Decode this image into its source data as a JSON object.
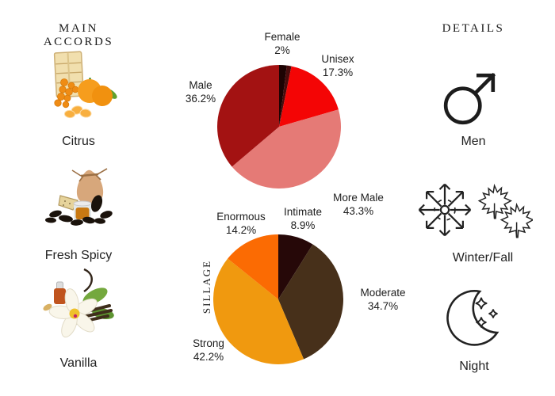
{
  "page": {
    "background": "#ffffff",
    "text_color": "#1e1e1e"
  },
  "left": {
    "heading": "MAIN ACCORDS",
    "accords": [
      {
        "name": "Citrus",
        "image": "citrus-crate-with-mandarins"
      },
      {
        "name": "Fresh Spicy",
        "image": "tonka-beans-amber-jar-pouch"
      },
      {
        "name": "Vanilla",
        "image": "vanilla-flower-pods-bottle"
      }
    ]
  },
  "right": {
    "heading": "DETAILS",
    "details": [
      {
        "label": "Men",
        "icon": "male-symbol"
      },
      {
        "label": "Winter/Fall",
        "icon": "snowflake-and-maple-leaves"
      },
      {
        "label": "Night",
        "icon": "crescent-moon-with-stars"
      }
    ]
  },
  "chart_data": [
    {
      "type": "pie",
      "name": "gender-votes",
      "start_angle_deg": 0,
      "direction": "clockwise",
      "legend_position": "around",
      "segments": [
        {
          "label": "Female",
          "pct": "2%",
          "value": 2,
          "color": "#1d0303"
        },
        {
          "label": "",
          "pct": "",
          "value": 1.2,
          "color": "#4a0c0c"
        },
        {
          "label": "Unisex",
          "pct": "17.3%",
          "value": 17.3,
          "color": "#f40505"
        },
        {
          "label": "More Male",
          "pct": "43.3%",
          "value": 43.3,
          "color": "#e57a76"
        },
        {
          "label": "Male",
          "pct": "36.2%",
          "value": 36.2,
          "color": "#a31212"
        }
      ]
    },
    {
      "type": "pie",
      "name": "sillage",
      "side_label": "SILLAGE",
      "start_angle_deg": 0,
      "direction": "clockwise",
      "legend_position": "around",
      "segments": [
        {
          "label": "Intimate",
          "pct": "8.9%",
          "value": 8.9,
          "color": "#260808"
        },
        {
          "label": "Moderate",
          "pct": "34.7%",
          "value": 34.7,
          "color": "#47301a"
        },
        {
          "label": "Strong",
          "pct": "42.2%",
          "value": 42.2,
          "color": "#f0990f"
        },
        {
          "label": "Enormous",
          "pct": "14.2%",
          "value": 14.2,
          "color": "#fb6b03"
        }
      ]
    }
  ]
}
